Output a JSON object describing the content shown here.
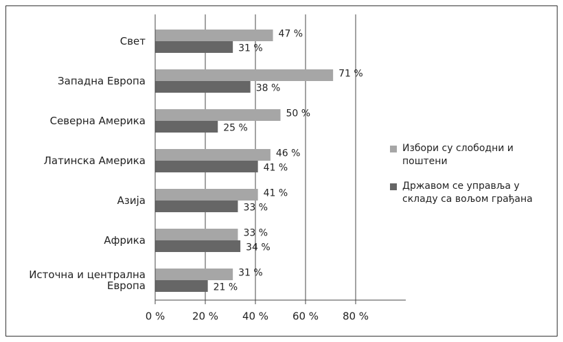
{
  "chart_data": {
    "type": "bar",
    "orientation": "horizontal",
    "categories": [
      "Свет",
      "Западна Европа",
      "Северна Америка",
      "Латинска Америка",
      "Азија",
      "Африка",
      "Источна и централна Европа"
    ],
    "series": [
      {
        "name": "Избори су слободни и поштени",
        "color": "#a6a6a6",
        "values": [
          47,
          71,
          50,
          46,
          41,
          33,
          31
        ],
        "value_labels": [
          "47 %",
          "71 %",
          "50 %",
          "46 %",
          "41 %",
          "33 %",
          "31 %"
        ]
      },
      {
        "name": "Државом се управља у складу са вољом грађана",
        "color": "#666666",
        "values": [
          31,
          38,
          25,
          41,
          33,
          34,
          21
        ],
        "value_labels": [
          "31 %",
          "38 %",
          "25 %",
          "41 %",
          "33 %",
          "34 %",
          "21 %"
        ]
      }
    ],
    "xlim": [
      0,
      100
    ],
    "xticks": [
      {
        "value": 0,
        "label": "0 %"
      },
      {
        "value": 20,
        "label": "20 %"
      },
      {
        "value": 40,
        "label": "40 %"
      },
      {
        "value": 60,
        "label": "60 %"
      },
      {
        "value": 80,
        "label": "80 %"
      }
    ],
    "grid": true,
    "legend": "right"
  }
}
